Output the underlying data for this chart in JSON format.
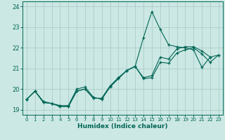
{
  "title": "",
  "xlabel": "Humidex (Indice chaleur)",
  "ylabel": "",
  "xlim": [
    -0.5,
    23.5
  ],
  "ylim": [
    18.75,
    24.25
  ],
  "yticks": [
    19,
    20,
    21,
    22,
    23,
    24
  ],
  "xticks": [
    0,
    1,
    2,
    3,
    4,
    5,
    6,
    7,
    8,
    9,
    10,
    11,
    12,
    13,
    14,
    15,
    16,
    17,
    18,
    19,
    20,
    21,
    22,
    23
  ],
  "bg_color": "#cce8e4",
  "grid_color": "#aaccc8",
  "line_color": "#006655",
  "series": [
    [
      19.5,
      19.9,
      19.4,
      19.3,
      19.2,
      19.2,
      20.0,
      20.1,
      19.6,
      19.5,
      20.1,
      20.5,
      20.9,
      21.1,
      22.5,
      23.75,
      22.9,
      22.15,
      22.05,
      22.0,
      21.9,
      21.05,
      21.55,
      null
    ],
    [
      19.5,
      19.9,
      19.35,
      19.3,
      19.15,
      19.15,
      19.9,
      20.0,
      19.55,
      19.55,
      20.15,
      20.55,
      20.9,
      21.1,
      20.55,
      20.65,
      21.55,
      21.45,
      21.95,
      22.05,
      22.05,
      21.85,
      21.55,
      21.65
    ],
    [
      19.5,
      19.9,
      19.35,
      19.3,
      19.15,
      19.15,
      19.9,
      20.0,
      19.55,
      19.55,
      20.15,
      20.55,
      20.9,
      21.1,
      20.5,
      20.55,
      21.3,
      21.25,
      21.75,
      21.9,
      22.0,
      21.7,
      21.3,
      21.65
    ]
  ]
}
